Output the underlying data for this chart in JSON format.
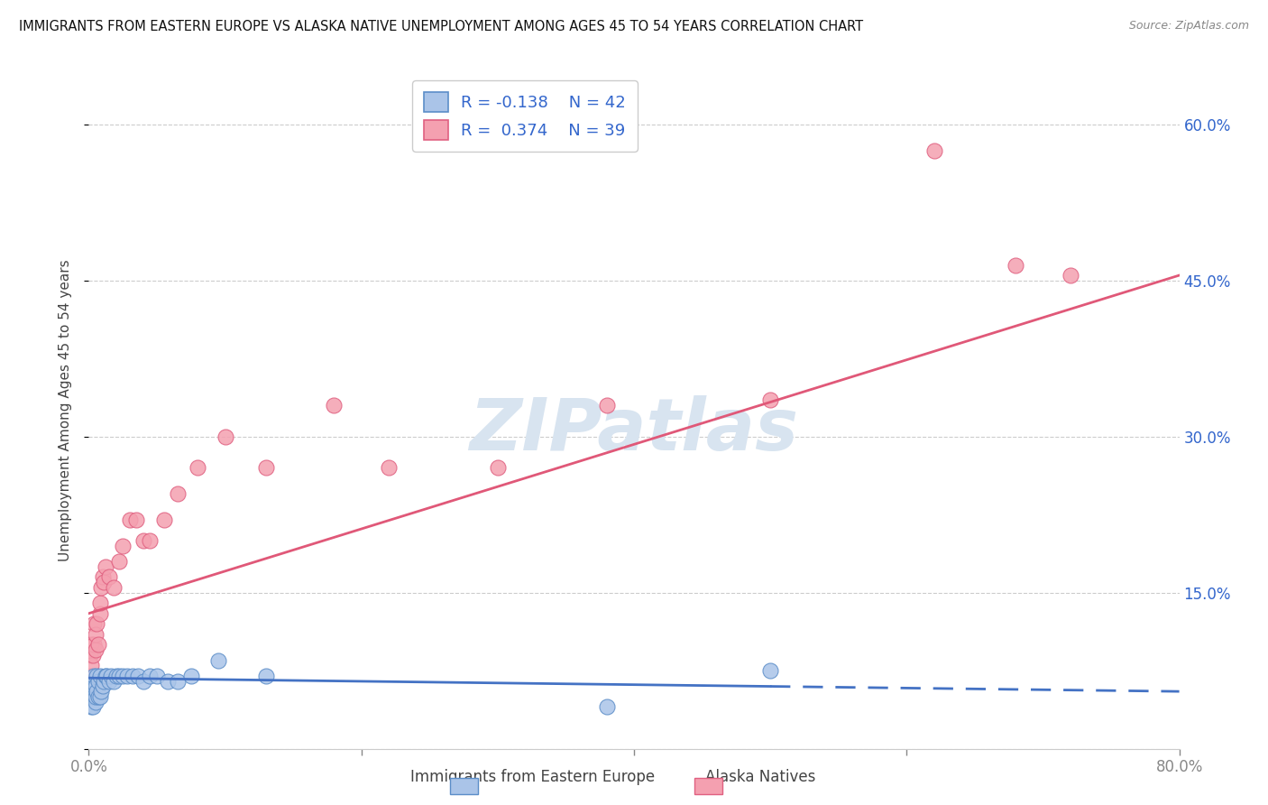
{
  "title": "IMMIGRANTS FROM EASTERN EUROPE VS ALASKA NATIVE UNEMPLOYMENT AMONG AGES 45 TO 54 YEARS CORRELATION CHART",
  "source": "Source: ZipAtlas.com",
  "ylabel": "Unemployment Among Ages 45 to 54 years",
  "xlim": [
    0.0,
    0.8
  ],
  "ylim": [
    0.0,
    0.65
  ],
  "yticks": [
    0.0,
    0.15,
    0.3,
    0.45,
    0.6
  ],
  "ytick_labels": [
    "",
    "15.0%",
    "30.0%",
    "45.0%",
    "60.0%"
  ],
  "xticks": [
    0.0,
    0.2,
    0.4,
    0.6,
    0.8
  ],
  "xtick_labels": [
    "0.0%",
    "",
    "",
    "",
    "80.0%"
  ],
  "blue_R": -0.138,
  "blue_N": 42,
  "pink_R": 0.374,
  "pink_N": 39,
  "blue_label": "Immigrants from Eastern Europe",
  "pink_label": "Alaska Natives",
  "blue_color": "#aac4e8",
  "pink_color": "#f4a0b0",
  "blue_edge_color": "#5b8dc8",
  "pink_edge_color": "#e06080",
  "blue_line_color": "#4472c4",
  "pink_line_color": "#e05878",
  "blue_x": [
    0.001,
    0.001,
    0.002,
    0.002,
    0.003,
    0.003,
    0.003,
    0.004,
    0.004,
    0.005,
    0.005,
    0.005,
    0.006,
    0.006,
    0.007,
    0.007,
    0.008,
    0.008,
    0.009,
    0.01,
    0.011,
    0.012,
    0.013,
    0.015,
    0.016,
    0.018,
    0.02,
    0.022,
    0.025,
    0.028,
    0.032,
    0.036,
    0.04,
    0.045,
    0.05,
    0.058,
    0.065,
    0.075,
    0.095,
    0.13,
    0.38,
    0.5
  ],
  "blue_y": [
    0.05,
    0.06,
    0.04,
    0.055,
    0.04,
    0.05,
    0.06,
    0.05,
    0.07,
    0.045,
    0.05,
    0.06,
    0.055,
    0.07,
    0.05,
    0.065,
    0.05,
    0.07,
    0.055,
    0.06,
    0.065,
    0.07,
    0.07,
    0.065,
    0.07,
    0.065,
    0.07,
    0.07,
    0.07,
    0.07,
    0.07,
    0.07,
    0.065,
    0.07,
    0.07,
    0.065,
    0.065,
    0.07,
    0.085,
    0.07,
    0.04,
    0.075
  ],
  "pink_x": [
    0.001,
    0.001,
    0.002,
    0.002,
    0.003,
    0.003,
    0.004,
    0.004,
    0.005,
    0.005,
    0.006,
    0.007,
    0.008,
    0.008,
    0.009,
    0.01,
    0.011,
    0.012,
    0.015,
    0.018,
    0.022,
    0.025,
    0.03,
    0.035,
    0.04,
    0.045,
    0.055,
    0.065,
    0.08,
    0.1,
    0.13,
    0.18,
    0.22,
    0.3,
    0.38,
    0.5,
    0.62,
    0.68,
    0.72
  ],
  "pink_y": [
    0.07,
    0.09,
    0.08,
    0.1,
    0.065,
    0.09,
    0.1,
    0.12,
    0.095,
    0.11,
    0.12,
    0.1,
    0.13,
    0.14,
    0.155,
    0.165,
    0.16,
    0.175,
    0.165,
    0.155,
    0.18,
    0.195,
    0.22,
    0.22,
    0.2,
    0.2,
    0.22,
    0.245,
    0.27,
    0.3,
    0.27,
    0.33,
    0.27,
    0.27,
    0.33,
    0.335,
    0.575,
    0.465,
    0.455
  ],
  "background_color": "#ffffff",
  "grid_color": "#cccccc",
  "watermark_text": "ZIPatlas",
  "watermark_color": "#d8e4f0",
  "blue_trend_start_x": 0.0,
  "blue_trend_end_x": 0.8,
  "blue_trend_start_y": 0.068,
  "blue_trend_end_y": 0.055,
  "pink_trend_start_x": 0.0,
  "pink_trend_end_x": 0.8,
  "pink_trend_start_y": 0.13,
  "pink_trend_end_y": 0.455
}
